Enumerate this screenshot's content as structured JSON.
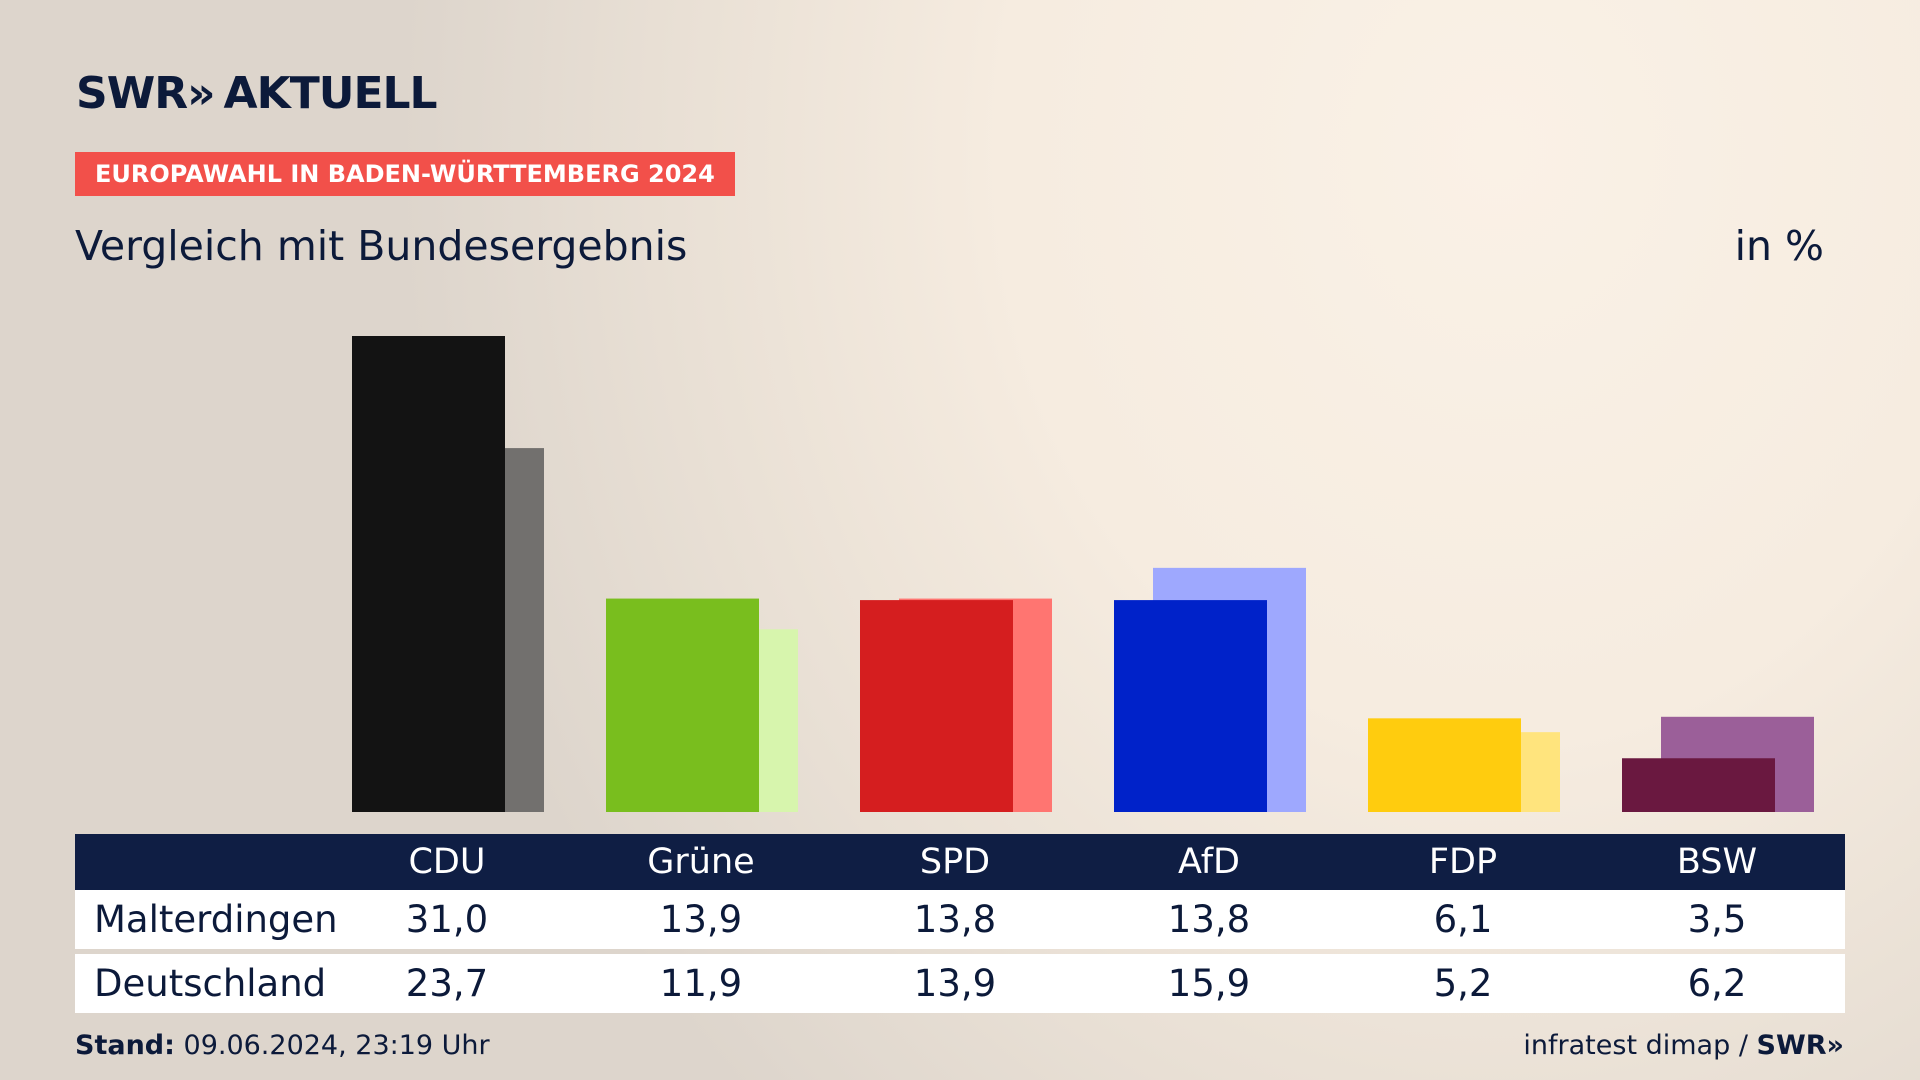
{
  "header": {
    "logo_text": "SWR",
    "logo_chevrons": "»",
    "logo_suffix": "AKTUELL",
    "tag": "EUROPAWAHL IN BADEN-WÜRTTEMBERG 2024",
    "subtitle": "Vergleich mit Bundesergebnis",
    "unit": "in %"
  },
  "chart_data": {
    "type": "bar",
    "title": "Vergleich mit Bundesergebnis",
    "ylabel": "in %",
    "categories": [
      "CDU",
      "Grüne",
      "SPD",
      "AfD",
      "FDP",
      "BSW"
    ],
    "series": [
      {
        "name": "Malterdingen",
        "values": [
          31.0,
          13.9,
          13.8,
          13.8,
          6.1,
          3.5
        ]
      },
      {
        "name": "Deutschland",
        "values": [
          23.7,
          11.9,
          13.9,
          15.9,
          5.2,
          6.2
        ]
      }
    ],
    "colors": {
      "primary": [
        "#131313",
        "#79be1e",
        "#d51e1f",
        "#0022c9",
        "#ffcc0e",
        "#6a1840"
      ],
      "secondary": [
        "#72706e",
        "#d7f5ad",
        "#ff7571",
        "#9ea8fe",
        "#ffe47d",
        "#9b5f99"
      ]
    },
    "ylim": [
      0,
      31.0
    ],
    "grid": false,
    "legend": "none"
  },
  "table": {
    "headers": [
      "CDU",
      "Grüne",
      "SPD",
      "AfD",
      "FDP",
      "BSW"
    ],
    "rows": [
      {
        "label": "Malterdingen",
        "values": [
          "31,0",
          "13,9",
          "13,8",
          "13,8",
          "6,1",
          "3,5"
        ]
      },
      {
        "label": "Deutschland",
        "values": [
          "23,7",
          "11,9",
          "13,9",
          "15,9",
          "5,2",
          "6,2"
        ]
      }
    ]
  },
  "footer": {
    "stand_label": "Stand:",
    "stand_value": "09.06.2024, 23:19 Uhr",
    "source": "infratest dimap /",
    "source_logo": "SWR»"
  }
}
